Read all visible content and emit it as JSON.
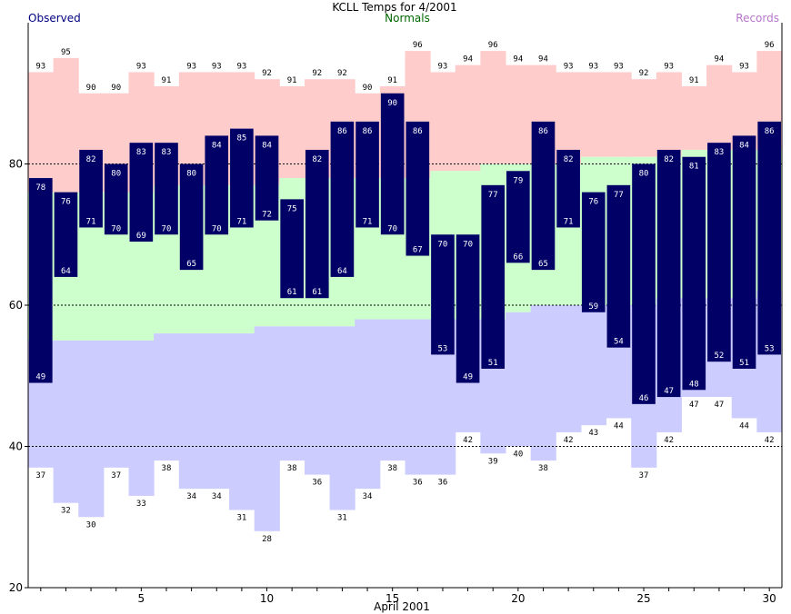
{
  "chart_data": {
    "type": "bar",
    "title": "KCLL Temps for 4/2001",
    "xlabel": "April 2001",
    "ylabel": "",
    "legend": {
      "observed": "Observed",
      "normals": "Normals",
      "records": "Records"
    },
    "colors": {
      "observed": "#000066",
      "observed_text": "#ffffff",
      "normals_band": "#ccffcc",
      "record_high_band": "#ffcccc",
      "record_low_band": "#ccccff",
      "legend_observed": "#000080",
      "legend_normals": "#006600",
      "legend_records": "#b777cc",
      "grid": "#000000"
    },
    "ylim": [
      20,
      100
    ],
    "yticks": [
      20,
      40,
      60,
      80
    ],
    "xticks": [
      5,
      10,
      15,
      20,
      25,
      30
    ],
    "days": [
      1,
      2,
      3,
      4,
      5,
      6,
      7,
      8,
      9,
      10,
      11,
      12,
      13,
      14,
      15,
      16,
      17,
      18,
      19,
      20,
      21,
      22,
      23,
      24,
      25,
      26,
      27,
      28,
      29,
      30
    ],
    "observed_high": [
      78,
      76,
      82,
      80,
      83,
      83,
      80,
      84,
      85,
      84,
      75,
      82,
      86,
      86,
      90,
      86,
      70,
      70,
      77,
      79,
      86,
      82,
      76,
      77,
      80,
      82,
      81,
      83,
      84,
      86
    ],
    "observed_low": [
      49,
      64,
      71,
      70,
      69,
      70,
      65,
      70,
      71,
      72,
      61,
      61,
      64,
      71,
      70,
      67,
      53,
      49,
      51,
      66,
      65,
      71,
      59,
      54,
      46,
      47,
      48,
      52,
      51,
      53
    ],
    "record_high": [
      93,
      95,
      90,
      90,
      93,
      91,
      93,
      93,
      93,
      92,
      91,
      92,
      92,
      90,
      91,
      96,
      93,
      94,
      96,
      94,
      94,
      93,
      93,
      93,
      92,
      93,
      91,
      94,
      93,
      96
    ],
    "record_low": [
      37,
      32,
      30,
      37,
      33,
      38,
      34,
      34,
      31,
      28,
      38,
      36,
      31,
      34,
      38,
      36,
      36,
      42,
      39,
      40,
      38,
      42,
      43,
      44,
      37,
      42,
      47,
      47,
      44,
      42
    ],
    "normal_high": [
      76,
      76,
      76,
      76,
      76,
      77,
      77,
      77,
      77,
      77,
      78,
      78,
      78,
      78,
      78,
      78,
      79,
      79,
      80,
      80,
      80,
      80,
      81,
      81,
      81,
      81,
      82,
      82,
      82,
      82
    ],
    "normal_low": [
      55,
      55,
      55,
      55,
      55,
      56,
      56,
      56,
      56,
      57,
      57,
      57,
      57,
      58,
      58,
      58,
      58,
      58,
      58,
      59,
      60,
      60,
      60,
      60,
      60,
      61,
      61,
      61,
      61,
      62
    ]
  }
}
